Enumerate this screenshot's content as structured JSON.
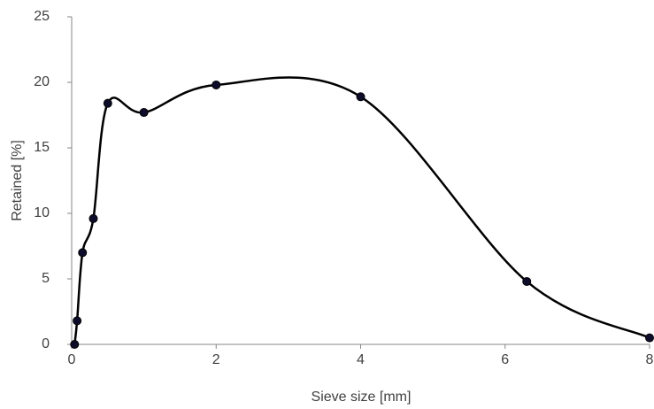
{
  "chart_data": {
    "type": "line",
    "smooth": true,
    "markers": true,
    "x_label": "Sieve size [mm]",
    "y_label": "Retained [%]",
    "x": [
      0.04,
      0.075,
      0.15,
      0.3,
      0.5,
      1.0,
      2.0,
      4.0,
      6.3,
      8.0
    ],
    "series": [
      {
        "color": "#000000",
        "marker_color": "#0d0d2b",
        "values": [
          0,
          1.8,
          7.0,
          9.6,
          18.4,
          17.7,
          19.8,
          18.9,
          4.8,
          0.5
        ]
      }
    ],
    "xlim": [
      0,
      8
    ],
    "xticks": [
      0,
      2,
      4,
      6,
      8
    ],
    "ylim": [
      0,
      25
    ],
    "yticks": [
      0,
      5,
      10,
      15,
      20,
      25
    ],
    "grid": false
  }
}
